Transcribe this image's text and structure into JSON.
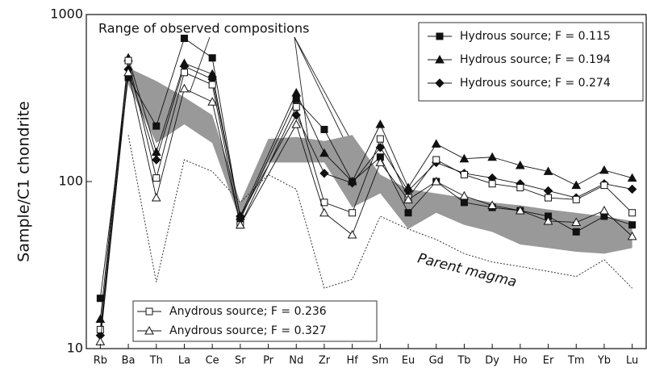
{
  "chart_data": {
    "type": "line",
    "y_label": "Sample/C1 chondrite",
    "log_y": true,
    "ylim": [
      10,
      1000
    ],
    "yticks": [
      10,
      100,
      1000
    ],
    "categories": [
      "Rb",
      "Ba",
      "Th",
      "La",
      "Ce",
      "Sr",
      "Pr",
      "Nd",
      "Zr",
      "Hf",
      "Sm",
      "Eu",
      "Gd",
      "Tb",
      "Dy",
      "Ho",
      "Er",
      "Tm",
      "Yb",
      "Lu"
    ],
    "range": {
      "label": "Range of observed compositions",
      "color": "#999999",
      "upper": [
        null,
        480,
        400,
        320,
        250,
        75,
        180,
        185,
        175,
        190,
        110,
        90,
        85,
        80,
        75,
        72,
        68,
        65,
        62,
        58
      ],
      "lower": [
        null,
        380,
        170,
        220,
        170,
        58,
        130,
        130,
        130,
        70,
        85,
        52,
        65,
        55,
        50,
        42,
        40,
        38,
        37,
        40
      ]
    },
    "parent": {
      "label": "Parent magma",
      "color": "#333333",
      "values": [
        null,
        190,
        25,
        135,
        115,
        75,
        110,
        90,
        23,
        26,
        62,
        52,
        45,
        37,
        33,
        31,
        29,
        27,
        34,
        23
      ]
    },
    "series": [
      {
        "name": "Hydrous source; F = 0.115",
        "color": "#111111",
        "marker": "square",
        "filled": true,
        "legend": "upper right",
        "values": [
          20,
          420,
          215,
          720,
          550,
          60,
          null,
          310,
          205,
          100,
          140,
          65,
          100,
          75,
          70,
          67,
          62,
          50,
          62,
          55
        ]
      },
      {
        "name": "Hydrous source; F = 0.194",
        "color": "#111111",
        "marker": "triangle",
        "filled": true,
        "legend": "upper right",
        "values": [
          15,
          550,
          150,
          510,
          440,
          62,
          null,
          340,
          148,
          100,
          220,
          92,
          168,
          137,
          140,
          125,
          115,
          95,
          117,
          105
        ]
      },
      {
        "name": "Hydrous source; F = 0.274",
        "color": "#111111",
        "marker": "diamond",
        "filled": true,
        "legend": "upper right",
        "values": [
          12,
          470,
          135,
          490,
          410,
          62,
          null,
          250,
          112,
          98,
          160,
          88,
          130,
          112,
          105,
          97,
          88,
          80,
          97,
          90
        ]
      },
      {
        "name": "Anydrous source; F = 0.236",
        "color": "#111111",
        "marker": "square",
        "filled": false,
        "legend": "lower left",
        "values": [
          13,
          530,
          105,
          450,
          380,
          55,
          null,
          280,
          75,
          65,
          180,
          80,
          135,
          110,
          97,
          92,
          80,
          78,
          95,
          65
        ]
      },
      {
        "name": "Anydrous source; F = 0.327",
        "color": "#111111",
        "marker": "triangle",
        "filled": false,
        "legend": "lower left",
        "values": [
          11,
          450,
          80,
          360,
          300,
          55,
          null,
          220,
          65,
          48,
          130,
          78,
          100,
          82,
          72,
          67,
          58,
          57,
          67,
          47
        ]
      }
    ]
  }
}
